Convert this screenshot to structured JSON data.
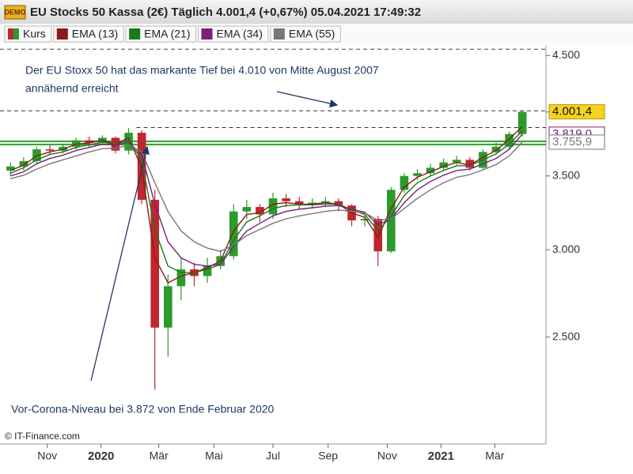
{
  "chart_data": {
    "type": "candlestick",
    "title": "EU Stocks 50 Kassa (2€) Täglich 4.001,4 (+0,67%) 05.04.2021 17:49:32",
    "logo_text": "DEMO",
    "source": "© IT-Finance.com",
    "log_scale": true,
    "ylim": [
      2000,
      4600
    ],
    "yticks": [
      {
        "value": 2500,
        "label": "2.500"
      },
      {
        "value": 3000,
        "label": "3.000"
      },
      {
        "value": 3500,
        "label": "3.500"
      },
      {
        "value": 4000,
        "label": "4.000"
      },
      {
        "value": 4500,
        "label": "4.500"
      }
    ],
    "xlim": [
      -0.8,
      40.8
    ],
    "xticks": [
      {
        "value": 2.8,
        "label": "Nov"
      },
      {
        "value": 6.9,
        "label": "2020"
      },
      {
        "value": 11.3,
        "label": "Mär"
      },
      {
        "value": 15.5,
        "label": "Mai"
      },
      {
        "value": 20.0,
        "label": "Jul"
      },
      {
        "value": 24.2,
        "label": "Sep"
      },
      {
        "value": 28.7,
        "label": "Nov"
      },
      {
        "value": 32.8,
        "label": "2021"
      },
      {
        "value": 36.9,
        "label": "Mär"
      }
    ],
    "x": [
      0,
      1,
      2,
      3,
      4,
      5,
      6,
      7,
      8,
      9,
      10,
      11,
      12,
      13,
      14,
      15,
      16,
      17,
      18,
      19,
      20,
      21,
      22,
      23,
      24,
      25,
      26,
      27,
      28,
      29,
      30,
      31,
      32,
      33,
      34,
      35,
      36,
      37,
      38,
      39
    ],
    "up_color": "#2b9b2b",
    "down_color": "#c0262d",
    "series": [
      {
        "name": "Kurs",
        "type": "candlestick",
        "color": "#c0262d",
        "label_fill": "#f5d31f",
        "open": [
          3540,
          3570,
          3610,
          3700,
          3690,
          3720,
          3770,
          3750,
          3790,
          3690,
          3830,
          3330,
          2550,
          2780,
          2880,
          2840,
          2900,
          2960,
          3250,
          3280,
          3230,
          3340,
          3320,
          3300,
          3310,
          3320,
          3290,
          3190,
          3200,
          2990,
          3400,
          3500,
          3520,
          3560,
          3600,
          3620,
          3560,
          3680,
          3720,
          3820
        ],
        "high": [
          3600,
          3640,
          3720,
          3730,
          3745,
          3790,
          3800,
          3810,
          3800,
          3870,
          3850,
          3400,
          2850,
          2950,
          2920,
          2950,
          3000,
          3300,
          3330,
          3300,
          3380,
          3370,
          3350,
          3340,
          3350,
          3340,
          3300,
          3230,
          3220,
          3420,
          3520,
          3550,
          3590,
          3630,
          3650,
          3640,
          3700,
          3750,
          3840,
          4010
        ],
        "low": [
          3500,
          3540,
          3590,
          3660,
          3670,
          3700,
          3720,
          3730,
          3670,
          3660,
          3300,
          2240,
          2400,
          2700,
          2780,
          2800,
          2880,
          2940,
          3200,
          3180,
          3200,
          3280,
          3260,
          3270,
          3280,
          3250,
          3150,
          3150,
          2900,
          2980,
          3380,
          3470,
          3500,
          3540,
          3580,
          3540,
          3550,
          3660,
          3700,
          3800
        ],
        "values": [
          3570,
          3610,
          3700,
          3690,
          3720,
          3770,
          3750,
          3790,
          3690,
          3830,
          3330,
          2550,
          2780,
          2880,
          2840,
          2900,
          2960,
          3250,
          3280,
          3230,
          3340,
          3320,
          3300,
          3310,
          3320,
          3290,
          3190,
          3200,
          2990,
          3400,
          3500,
          3520,
          3560,
          3600,
          3620,
          3560,
          3680,
          3720,
          3820,
          4001.4
        ],
        "last_label": "4.001,4"
      },
      {
        "name": "EMA (13)",
        "type": "line",
        "color": "#8b1a1a",
        "values": [
          3540,
          3580,
          3650,
          3680,
          3700,
          3740,
          3750,
          3770,
          3740,
          3790,
          3560,
          2950,
          2800,
          2840,
          2860,
          2890,
          2930,
          3120,
          3230,
          3240,
          3300,
          3310,
          3300,
          3300,
          3310,
          3300,
          3240,
          3210,
          3080,
          3270,
          3420,
          3490,
          3530,
          3570,
          3600,
          3580,
          3640,
          3690,
          3780,
          3880
        ]
      },
      {
        "name": "EMA (21)",
        "type": "line",
        "color": "#1a7a1a",
        "values": [
          3520,
          3560,
          3620,
          3660,
          3680,
          3715,
          3735,
          3755,
          3740,
          3770,
          3620,
          3130,
          2900,
          2860,
          2860,
          2880,
          2910,
          3060,
          3180,
          3220,
          3270,
          3290,
          3295,
          3295,
          3300,
          3300,
          3260,
          3230,
          3120,
          3220,
          3360,
          3450,
          3500,
          3540,
          3575,
          3575,
          3620,
          3665,
          3740,
          3845
        ]
      },
      {
        "name": "EMA (34)",
        "type": "line",
        "color": "#7b1f7b",
        "values": [
          3500,
          3530,
          3590,
          3630,
          3655,
          3690,
          3715,
          3740,
          3735,
          3755,
          3660,
          3300,
          3050,
          2950,
          2910,
          2900,
          2910,
          3020,
          3120,
          3170,
          3220,
          3250,
          3265,
          3275,
          3285,
          3290,
          3265,
          3245,
          3160,
          3200,
          3310,
          3400,
          3460,
          3505,
          3540,
          3550,
          3590,
          3630,
          3700,
          3819.0
        ],
        "last_label": "3.819,0"
      },
      {
        "name": "EMA (55)",
        "type": "line",
        "color": "#777777",
        "values": [
          3480,
          3505,
          3550,
          3590,
          3620,
          3650,
          3680,
          3705,
          3710,
          3730,
          3680,
          3450,
          3250,
          3120,
          3050,
          3010,
          2990,
          3030,
          3090,
          3130,
          3170,
          3200,
          3220,
          3235,
          3250,
          3260,
          3250,
          3240,
          3190,
          3200,
          3270,
          3340,
          3400,
          3450,
          3490,
          3510,
          3545,
          3585,
          3650,
          3755.9
        ],
        "last_label": "3.755,9"
      }
    ],
    "hlines": [
      {
        "value": 4560,
        "style": "dashed",
        "color": "#444444",
        "from": -0.8
      },
      {
        "value": 4010,
        "style": "dashed",
        "color": "#333333",
        "from": -0.8
      },
      {
        "value": 3872,
        "style": "dashed",
        "color": "#333333",
        "from": 9.6
      },
      {
        "value": 3750,
        "style": "double",
        "color": "#2ca02c",
        "from": -0.8
      }
    ],
    "annotations": [
      {
        "lines": [
          "Der EU Stoxx 50 hat das markante Tief bei 4.010 von Mitte August 2007",
          "annähernd erreicht"
        ]
      },
      {
        "lines": [
          "Vor-Corona-Niveau bei 3.872 von Ende Februar 2020"
        ]
      }
    ]
  }
}
